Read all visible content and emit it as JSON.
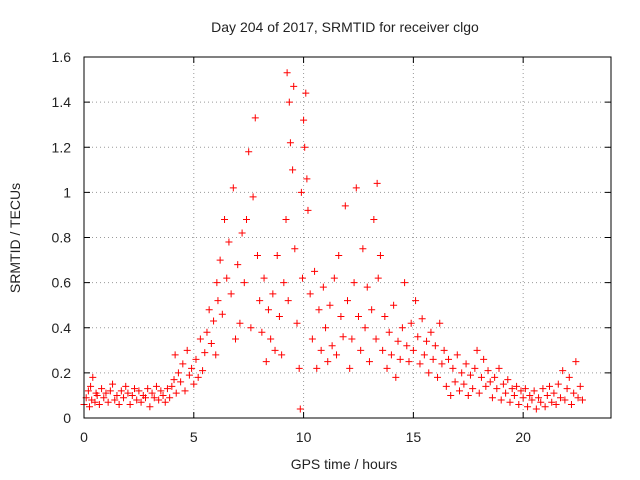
{
  "chart_data": {
    "type": "scatter",
    "title": "Day 204 of 2017, SRMTID for receiver clgo",
    "xlabel": "GPS time / hours",
    "ylabel": "SRMTID / TECUs",
    "xlim": [
      0,
      24
    ],
    "ylim": [
      0,
      1.6
    ],
    "x_ticks": [
      0,
      5,
      10,
      15,
      20
    ],
    "y_ticks": [
      0,
      0.2,
      0.4,
      0.6,
      0.8,
      1,
      1.2,
      1.4,
      1.6
    ],
    "x_tick_labels": [
      "0",
      "5",
      "10",
      "15",
      "20"
    ],
    "y_tick_labels": [
      "0",
      "0.2",
      "0.4",
      "0.6",
      "0.8",
      "1",
      "1.2",
      "1.4",
      "1.6"
    ],
    "grid": true,
    "marker": "plus",
    "series": [
      {
        "name": "SRMTID",
        "color": "#ff0000",
        "points": [
          [
            0.0,
            0.06
          ],
          [
            0.1,
            0.09
          ],
          [
            0.2,
            0.12
          ],
          [
            0.25,
            0.05
          ],
          [
            0.3,
            0.14
          ],
          [
            0.35,
            0.08
          ],
          [
            0.4,
            0.18
          ],
          [
            0.5,
            0.07
          ],
          [
            0.55,
            0.11
          ],
          [
            0.6,
            0.1
          ],
          [
            0.7,
            0.06
          ],
          [
            0.8,
            0.13
          ],
          [
            0.9,
            0.09
          ],
          [
            1.0,
            0.11
          ],
          [
            1.1,
            0.07
          ],
          [
            1.2,
            0.12
          ],
          [
            1.3,
            0.15
          ],
          [
            1.4,
            0.08
          ],
          [
            1.5,
            0.1
          ],
          [
            1.6,
            0.06
          ],
          [
            1.7,
            0.12
          ],
          [
            1.8,
            0.09
          ],
          [
            1.9,
            0.14
          ],
          [
            2.0,
            0.11
          ],
          [
            2.1,
            0.06
          ],
          [
            2.2,
            0.1
          ],
          [
            2.3,
            0.13
          ],
          [
            2.4,
            0.08
          ],
          [
            2.5,
            0.12
          ],
          [
            2.6,
            0.07
          ],
          [
            2.7,
            0.1
          ],
          [
            2.8,
            0.09
          ],
          [
            2.9,
            0.13
          ],
          [
            3.0,
            0.05
          ],
          [
            3.1,
            0.11
          ],
          [
            3.2,
            0.09
          ],
          [
            3.3,
            0.14
          ],
          [
            3.4,
            0.08
          ],
          [
            3.5,
            0.12
          ],
          [
            3.6,
            0.1
          ],
          [
            3.7,
            0.07
          ],
          [
            3.8,
            0.13
          ],
          [
            3.9,
            0.09
          ],
          [
            4.0,
            0.14
          ],
          [
            4.1,
            0.17
          ],
          [
            4.15,
            0.28
          ],
          [
            4.2,
            0.11
          ],
          [
            4.3,
            0.2
          ],
          [
            4.4,
            0.16
          ],
          [
            4.5,
            0.24
          ],
          [
            4.6,
            0.12
          ],
          [
            4.7,
            0.3
          ],
          [
            4.8,
            0.19
          ],
          [
            4.9,
            0.22
          ],
          [
            5.0,
            0.15
          ],
          [
            5.1,
            0.26
          ],
          [
            5.2,
            0.18
          ],
          [
            5.3,
            0.35
          ],
          [
            5.4,
            0.21
          ],
          [
            5.5,
            0.29
          ],
          [
            5.6,
            0.38
          ],
          [
            5.7,
            0.48
          ],
          [
            5.8,
            0.33
          ],
          [
            5.9,
            0.43
          ],
          [
            6.0,
            0.28
          ],
          [
            6.05,
            0.6
          ],
          [
            6.1,
            0.52
          ],
          [
            6.2,
            0.7
          ],
          [
            6.3,
            0.46
          ],
          [
            6.4,
            0.88
          ],
          [
            6.5,
            0.62
          ],
          [
            6.6,
            0.78
          ],
          [
            6.7,
            0.55
          ],
          [
            6.8,
            1.02
          ],
          [
            6.9,
            0.35
          ],
          [
            7.0,
            0.68
          ],
          [
            7.1,
            0.42
          ],
          [
            7.2,
            0.82
          ],
          [
            7.3,
            0.6
          ],
          [
            7.4,
            0.88
          ],
          [
            7.5,
            1.18
          ],
          [
            7.6,
            0.4
          ],
          [
            7.7,
            0.98
          ],
          [
            7.8,
            1.33
          ],
          [
            7.9,
            0.72
          ],
          [
            8.0,
            0.52
          ],
          [
            8.1,
            0.38
          ],
          [
            8.2,
            0.62
          ],
          [
            8.3,
            0.25
          ],
          [
            8.4,
            0.48
          ],
          [
            8.5,
            0.35
          ],
          [
            8.6,
            0.55
          ],
          [
            8.7,
            0.3
          ],
          [
            8.8,
            0.72
          ],
          [
            8.9,
            0.45
          ],
          [
            9.0,
            0.28
          ],
          [
            9.1,
            0.6
          ],
          [
            9.2,
            0.88
          ],
          [
            9.25,
            1.53
          ],
          [
            9.3,
            0.52
          ],
          [
            9.35,
            1.4
          ],
          [
            9.4,
            1.22
          ],
          [
            9.5,
            1.1
          ],
          [
            9.55,
            1.47
          ],
          [
            9.6,
            0.75
          ],
          [
            9.7,
            0.42
          ],
          [
            9.8,
            0.22
          ],
          [
            9.85,
            0.04
          ],
          [
            9.9,
            1.0
          ],
          [
            9.95,
            0.62
          ],
          [
            10.0,
            1.32
          ],
          [
            10.05,
            1.2
          ],
          [
            10.1,
            1.44
          ],
          [
            10.15,
            1.06
          ],
          [
            10.2,
            0.92
          ],
          [
            10.3,
            0.55
          ],
          [
            10.4,
            0.35
          ],
          [
            10.5,
            0.65
          ],
          [
            10.6,
            0.22
          ],
          [
            10.7,
            0.48
          ],
          [
            10.8,
            0.3
          ],
          [
            10.9,
            0.58
          ],
          [
            11.0,
            0.4
          ],
          [
            11.1,
            0.25
          ],
          [
            11.2,
            0.5
          ],
          [
            11.3,
            0.32
          ],
          [
            11.4,
            0.62
          ],
          [
            11.5,
            0.28
          ],
          [
            11.6,
            0.72
          ],
          [
            11.7,
            0.45
          ],
          [
            11.8,
            0.36
          ],
          [
            11.9,
            0.94
          ],
          [
            12.0,
            0.52
          ],
          [
            12.1,
            0.22
          ],
          [
            12.2,
            0.35
          ],
          [
            12.3,
            0.6
          ],
          [
            12.4,
            1.02
          ],
          [
            12.5,
            0.45
          ],
          [
            12.6,
            0.3
          ],
          [
            12.7,
            0.75
          ],
          [
            12.8,
            0.4
          ],
          [
            12.9,
            0.58
          ],
          [
            13.0,
            0.25
          ],
          [
            13.1,
            0.48
          ],
          [
            13.2,
            0.88
          ],
          [
            13.3,
            0.35
          ],
          [
            13.35,
            1.04
          ],
          [
            13.4,
            0.62
          ],
          [
            13.5,
            0.72
          ],
          [
            13.6,
            0.3
          ],
          [
            13.7,
            0.45
          ],
          [
            13.8,
            0.22
          ],
          [
            13.9,
            0.38
          ],
          [
            14.0,
            0.28
          ],
          [
            14.1,
            0.5
          ],
          [
            14.2,
            0.18
          ],
          [
            14.3,
            0.34
          ],
          [
            14.4,
            0.26
          ],
          [
            14.5,
            0.4
          ],
          [
            14.6,
            0.6
          ],
          [
            14.7,
            0.32
          ],
          [
            14.8,
            0.25
          ],
          [
            14.9,
            0.42
          ],
          [
            15.0,
            0.3
          ],
          [
            15.1,
            0.52
          ],
          [
            15.2,
            0.36
          ],
          [
            15.3,
            0.24
          ],
          [
            15.4,
            0.44
          ],
          [
            15.5,
            0.28
          ],
          [
            15.6,
            0.34
          ],
          [
            15.7,
            0.2
          ],
          [
            15.8,
            0.38
          ],
          [
            15.9,
            0.26
          ],
          [
            16.0,
            0.32
          ],
          [
            16.1,
            0.18
          ],
          [
            16.2,
            0.42
          ],
          [
            16.3,
            0.24
          ],
          [
            16.4,
            0.3
          ],
          [
            16.5,
            0.14
          ],
          [
            16.6,
            0.26
          ],
          [
            16.7,
            0.1
          ],
          [
            16.8,
            0.22
          ],
          [
            16.9,
            0.16
          ],
          [
            17.0,
            0.28
          ],
          [
            17.1,
            0.12
          ],
          [
            17.2,
            0.2
          ],
          [
            17.3,
            0.15
          ],
          [
            17.4,
            0.24
          ],
          [
            17.5,
            0.1
          ],
          [
            17.6,
            0.19
          ],
          [
            17.7,
            0.13
          ],
          [
            17.8,
            0.22
          ],
          [
            17.9,
            0.3
          ],
          [
            18.0,
            0.11
          ],
          [
            18.1,
            0.18
          ],
          [
            18.2,
            0.26
          ],
          [
            18.3,
            0.14
          ],
          [
            18.4,
            0.21
          ],
          [
            18.5,
            0.16
          ],
          [
            18.6,
            0.09
          ],
          [
            18.7,
            0.18
          ],
          [
            18.8,
            0.13
          ],
          [
            18.9,
            0.22
          ],
          [
            19.0,
            0.08
          ],
          [
            19.1,
            0.15
          ],
          [
            19.2,
            0.11
          ],
          [
            19.3,
            0.17
          ],
          [
            19.4,
            0.07
          ],
          [
            19.5,
            0.13
          ],
          [
            19.6,
            0.1
          ],
          [
            19.7,
            0.14
          ],
          [
            19.8,
            0.06
          ],
          [
            19.9,
            0.12
          ],
          [
            20.0,
            0.09
          ],
          [
            20.1,
            0.13
          ],
          [
            20.2,
            0.05
          ],
          [
            20.3,
            0.1
          ],
          [
            20.4,
            0.08
          ],
          [
            20.5,
            0.12
          ],
          [
            20.6,
            0.04
          ],
          [
            20.7,
            0.09
          ],
          [
            20.8,
            0.07
          ],
          [
            20.9,
            0.13
          ],
          [
            21.0,
            0.05
          ],
          [
            21.1,
            0.1
          ],
          [
            21.2,
            0.14
          ],
          [
            21.3,
            0.07
          ],
          [
            21.4,
            0.11
          ],
          [
            21.5,
            0.06
          ],
          [
            21.6,
            0.15
          ],
          [
            21.7,
            0.09
          ],
          [
            21.8,
            0.21
          ],
          [
            21.9,
            0.08
          ],
          [
            22.0,
            0.13
          ],
          [
            22.1,
            0.18
          ],
          [
            22.2,
            0.06
          ],
          [
            22.3,
            0.11
          ],
          [
            22.4,
            0.25
          ],
          [
            22.5,
            0.09
          ],
          [
            22.6,
            0.14
          ],
          [
            22.7,
            0.08
          ]
        ]
      }
    ]
  }
}
